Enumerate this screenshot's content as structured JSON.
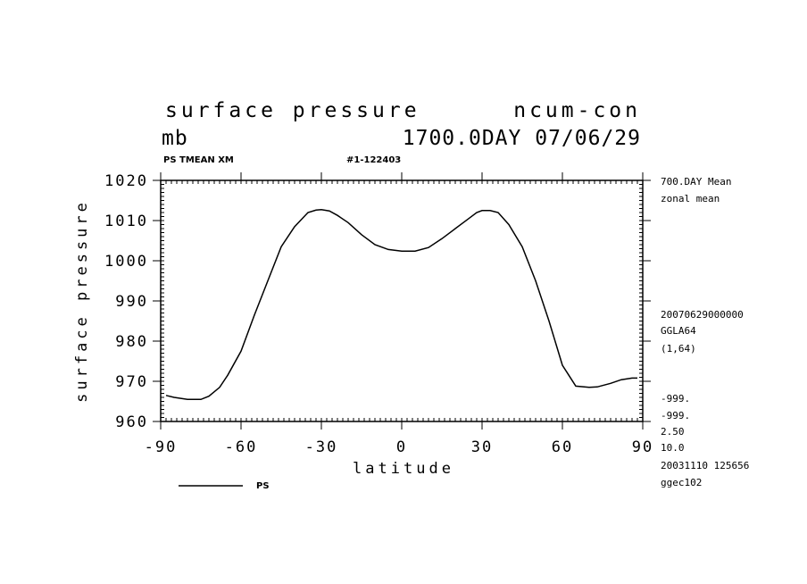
{
  "header": {
    "title_left": "surface pressure",
    "title_right": "ncum-con",
    "units": "mb",
    "time_label": "1700.0DAY 07/06/29",
    "var_label": "PS TMEAN XM",
    "run_label": "#1-122403"
  },
  "side_info": {
    "mean_label": "700.DAY Mean",
    "zonal_label": "zonal mean",
    "date_code": "20070629000000",
    "grid": "GGLA64",
    "range": "(1,64)",
    "missing_1": "-999.",
    "missing_2": "-999.",
    "interval": "2.50",
    "scale": "10.0",
    "stamp": "20031110 125656",
    "machine": "ggec102"
  },
  "legend": {
    "series_label": "PS"
  },
  "chart_data": {
    "type": "line",
    "xlabel": "latitude",
    "ylabel": "surface pressure",
    "xlim": [
      -90,
      90
    ],
    "ylim": [
      960,
      1020
    ],
    "xticks": [
      -90,
      -60,
      -30,
      0,
      30,
      60,
      90
    ],
    "yticks": [
      960,
      970,
      980,
      990,
      1000,
      1010,
      1020
    ],
    "xtick_labels": [
      "-90",
      "-60",
      "-30",
      "0",
      "30",
      "60",
      "90"
    ],
    "ytick_labels": [
      "960",
      "970",
      "980",
      "990",
      "1000",
      "1010",
      "1020"
    ],
    "grid": false,
    "series": [
      {
        "name": "PS",
        "color": "#000000",
        "x": [
          -88,
          -85,
          -80,
          -75,
          -72,
          -68,
          -65,
          -60,
          -55,
          -50,
          -45,
          -40,
          -35,
          -32,
          -30,
          -27,
          -24,
          -20,
          -15,
          -10,
          -5,
          0,
          5,
          10,
          15,
          20,
          25,
          28,
          30,
          33,
          36,
          40,
          45,
          50,
          55,
          60,
          65,
          70,
          73,
          78,
          82,
          86,
          88
        ],
        "y": [
          966.5,
          966,
          965.5,
          965.5,
          966.3,
          968.5,
          971.5,
          977.5,
          986.5,
          995,
          1003.5,
          1008.5,
          1012,
          1012.6,
          1012.7,
          1012.4,
          1011.3,
          1009.5,
          1006.5,
          1004,
          1002.8,
          1002.4,
          1002.4,
          1003.3,
          1005.5,
          1008,
          1010.5,
          1012,
          1012.5,
          1012.5,
          1012,
          1009,
          1003.5,
          995,
          985,
          974,
          968.8,
          968.5,
          968.6,
          969.5,
          970.4,
          970.8,
          970.8
        ]
      }
    ]
  }
}
